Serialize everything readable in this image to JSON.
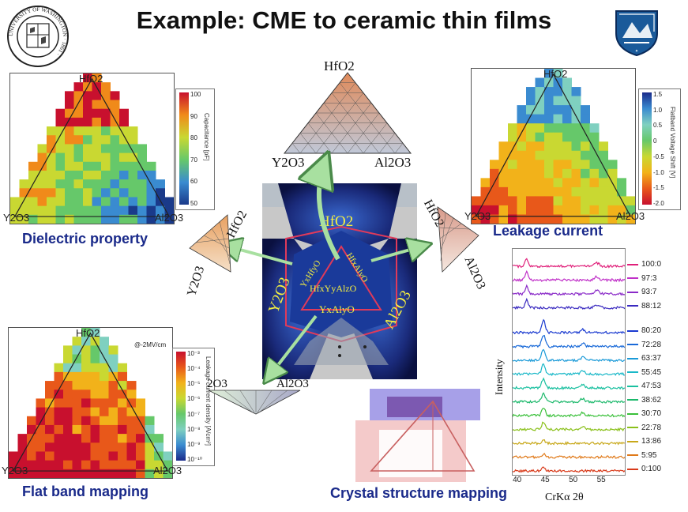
{
  "title": "Example: CME to ceramic thin films",
  "logos": {
    "left": {
      "name": "university-of-washington-seal",
      "text": "UNIVERSITY OF WASHINGTON · 1861 ·"
    },
    "right": {
      "name": "institution-crest"
    }
  },
  "center_diagram": {
    "apex": "HfO2",
    "left_vertex": "Y2O3",
    "right_vertex": "Al2O3"
  },
  "center_photo": {
    "hfo2": "HfO2",
    "y2o3": "Y2O3",
    "al2o3": "Al2O3",
    "yhfo": "YxHfyO",
    "hfalo": "HfxAlyO",
    "hfyalo": "HfxYyAlzO",
    "yalo": "YxAlyO"
  },
  "small_triangles": {
    "left": {
      "top": "HfO2",
      "bottom": "Y2O3"
    },
    "right": {
      "top": "HfO2",
      "bottom": "Al2O3"
    },
    "bottom": {
      "left": "2O3",
      "right": "Al2O3"
    }
  },
  "panels": {
    "dielectric": {
      "caption": "Dielectric property",
      "apex": "HfO2",
      "left": "Y2O3",
      "right": "Al2O3",
      "colorbar_label": "Capacitance [pF]",
      "ticks": [
        "100",
        "90",
        "80",
        "70",
        "60",
        "50"
      ],
      "colors": [
        "#c8102e",
        "#f08a1a",
        "#c9d832",
        "#66c86a",
        "#3a8bd0",
        "#1a3a8a"
      ]
    },
    "leakage": {
      "caption": "Leakage current",
      "apex": "HfO2",
      "left": "Y2O3",
      "right": "Al2O3",
      "colorbar_label": "Flatband Voltage Shift [V]",
      "ticks": [
        "1.5",
        "1.0",
        "0.5",
        "0",
        "-0.5",
        "-1.0",
        "-1.5",
        "-2.0"
      ],
      "colors": [
        "#1a2a8a",
        "#3a8bd0",
        "#7fd0c0",
        "#66c86a",
        "#c9d832",
        "#f2b21a",
        "#e8581a",
        "#c8102e"
      ]
    },
    "flatband": {
      "caption": "Flat band mapping",
      "apex": "HfO2",
      "left": "Y2O3",
      "right": "Al2O3",
      "annotation": "@-2MV/cm",
      "colorbar_label": "Leakage current density [A/cm²]",
      "ticks": [
        "10⁻³",
        "10⁻⁴",
        "10⁻⁵",
        "10⁻⁶",
        "10⁻⁷",
        "10⁻⁸",
        "10⁻⁹",
        "10⁻¹⁰"
      ],
      "colors": [
        "#c8102e",
        "#e8581a",
        "#f2b21a",
        "#c9d832",
        "#66c86a",
        "#7fd0c0",
        "#3a8bd0",
        "#1a2a8a"
      ]
    },
    "crystal": {
      "caption": "Crystal structure mapping"
    },
    "xrd": {
      "ylabel": "Intensity",
      "xlabel": "CrKα  2θ",
      "xticks": [
        "40",
        "45",
        "50",
        "55"
      ],
      "labels": [
        "100:0",
        "97:3",
        "93:7",
        "88:12",
        "80:20",
        "72:28",
        "63:37",
        "55:45",
        "47:53",
        "38:62",
        "30:70",
        "22:78",
        "13:86",
        "5:95",
        "0:100"
      ],
      "colors": [
        "#e0207a",
        "#c030c8",
        "#8a2ac8",
        "#3a2ac0",
        "#1a3ad0",
        "#1a6ad8",
        "#1a9ad8",
        "#1ab8c8",
        "#1ac0a0",
        "#1ab86a",
        "#3ac03a",
        "#8ac01a",
        "#c8a81a",
        "#e07a1a",
        "#d83a1a"
      ]
    }
  }
}
